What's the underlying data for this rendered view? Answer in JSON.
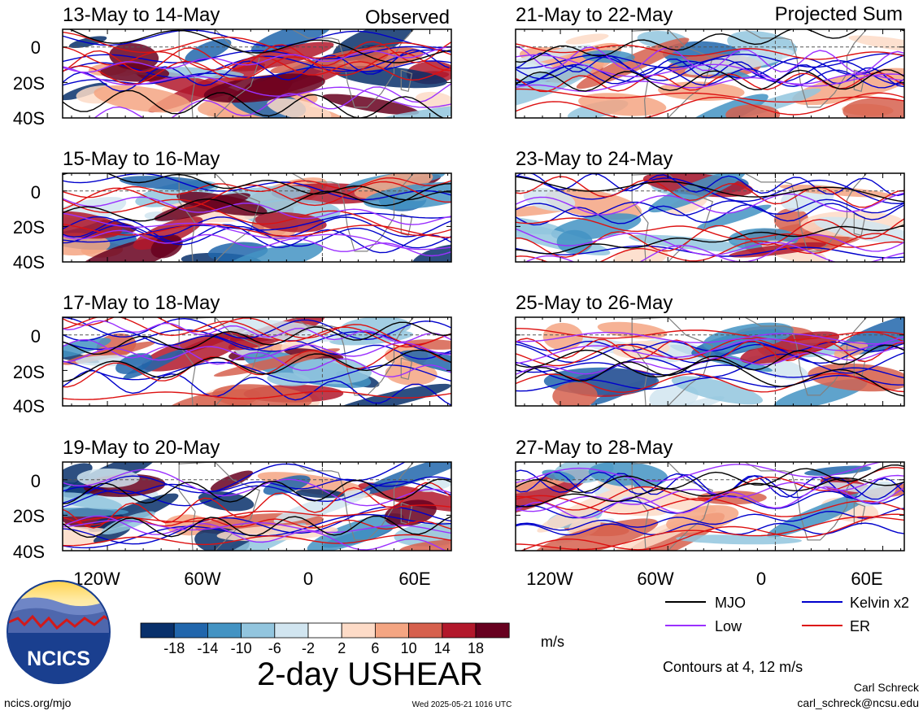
{
  "chart_data": {
    "type": "heatmap",
    "title": "2-day USHEAR",
    "variable": "USHEAR",
    "units": "m/s",
    "colorbar": {
      "ticks": [
        "-18",
        "-14",
        "-10",
        "-6",
        "-2",
        "2",
        "6",
        "10",
        "14",
        "18"
      ],
      "colors": [
        "#08306b",
        "#2166ac",
        "#4393c3",
        "#92c5de",
        "#d1e5f0",
        "#ffffff",
        "#fddbc7",
        "#f4a582",
        "#d6604d",
        "#b2182b",
        "#67001f"
      ]
    },
    "x_ticks": [
      "120W",
      "60W",
      "0",
      "60E"
    ],
    "x_tick_values": [
      -120,
      -60,
      0,
      60
    ],
    "xlim": [
      -145,
      72
    ],
    "y_ticks": [
      "0",
      "20S",
      "40S"
    ],
    "y_tick_values": [
      0,
      -20,
      -40
    ],
    "ylim": [
      -40,
      10
    ],
    "column_labels": [
      "Observed",
      "Projected Sum"
    ],
    "panels": [
      {
        "period": "13-May to 14-May",
        "group": "Observed"
      },
      {
        "period": "15-May to 16-May",
        "group": "Observed"
      },
      {
        "period": "17-May to 18-May",
        "group": "Observed"
      },
      {
        "period": "19-May to 20-May",
        "group": "Observed"
      },
      {
        "period": "21-May to 22-May",
        "group": "Projected Sum"
      },
      {
        "period": "23-May to 24-May",
        "group": "Projected Sum"
      },
      {
        "period": "25-May to 26-May",
        "group": "Projected Sum"
      },
      {
        "period": "27-May to 28-May",
        "group": "Projected Sum"
      }
    ],
    "contour_legend": [
      {
        "label": "MJO",
        "color": "#000000"
      },
      {
        "label": "Kelvin x2",
        "color": "#0000cc"
      },
      {
        "label": "Low",
        "color": "#9b30ff"
      },
      {
        "label": "ER",
        "color": "#dd1111"
      }
    ],
    "contour_note": "Contours at 4, 12 m/s"
  },
  "logo": {
    "text": "NCICS"
  },
  "footer": {
    "site": "ncics.org/mjo",
    "timestamp": "Wed 2025-05-21 1016 UTC",
    "author": "Carl Schreck",
    "email": "carl_schreck@ncsu.edu"
  }
}
